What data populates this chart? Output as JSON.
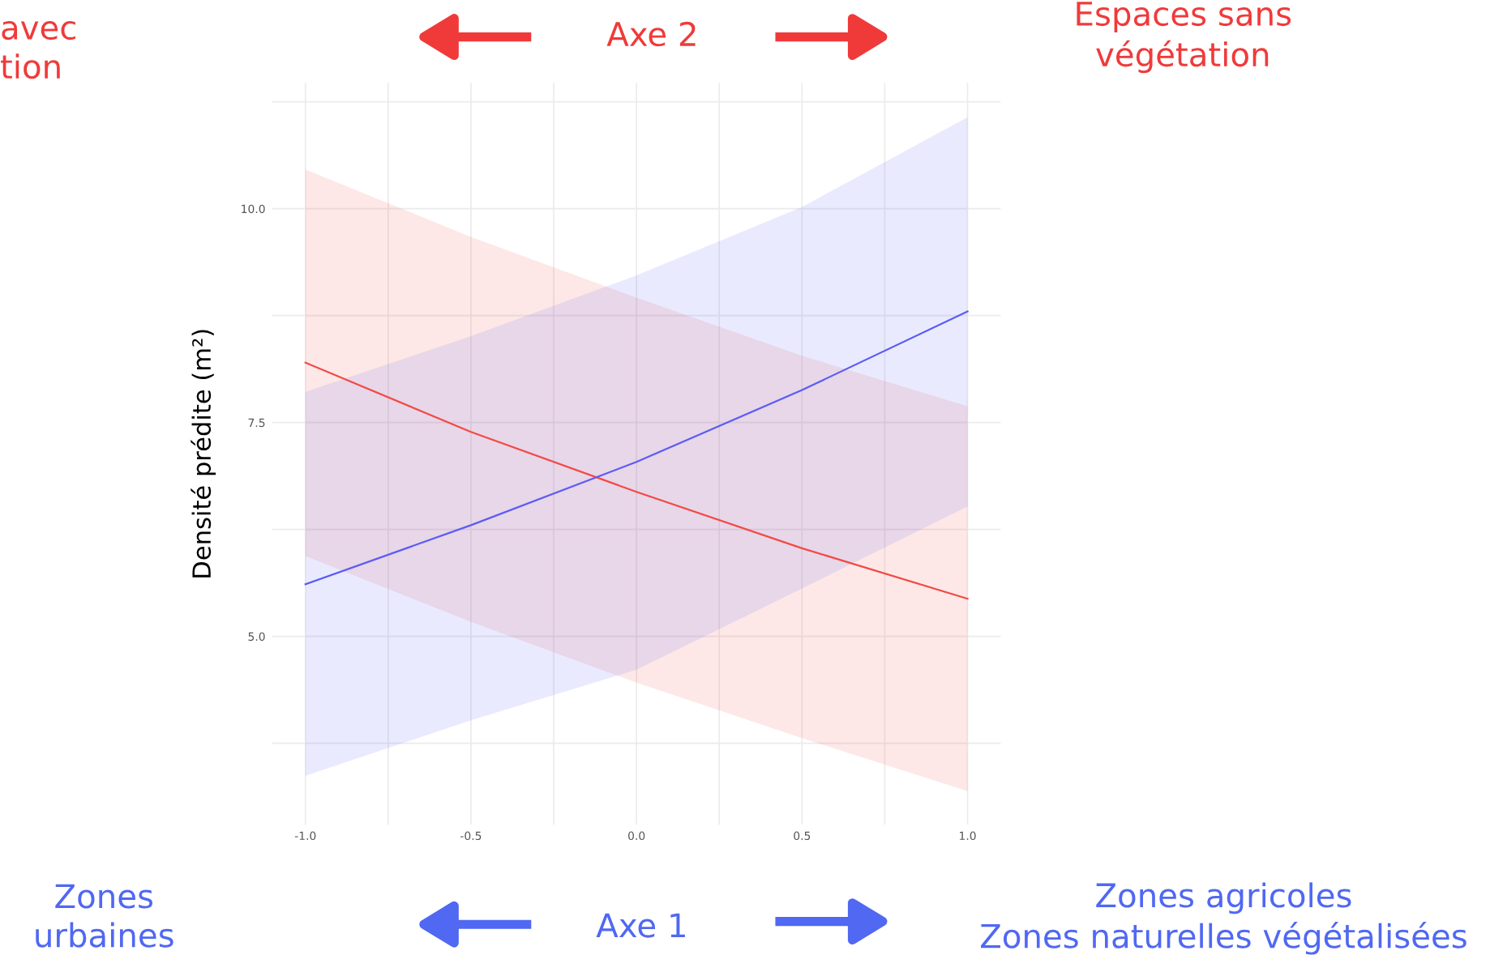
{
  "chart_data": {
    "type": "line",
    "ylabel": "Densité prédite (m²)",
    "x": [
      -1.0,
      -0.5,
      0.0,
      0.5,
      1.0
    ],
    "series": [
      {
        "color": "#f24a45",
        "values": [
          8.2,
          7.39,
          6.69,
          6.03,
          5.44
        ],
        "lower": [
          5.94,
          5.17,
          4.46,
          3.81,
          3.19
        ],
        "upper": [
          10.46,
          9.67,
          8.96,
          8.28,
          7.69
        ]
      },
      {
        "color": "#5a5cf5",
        "values": [
          5.61,
          6.3,
          7.04,
          7.88,
          8.8
        ],
        "lower": [
          3.37,
          4.02,
          4.61,
          5.56,
          6.52
        ],
        "upper": [
          7.86,
          8.51,
          9.22,
          10.02,
          11.07
        ]
      }
    ],
    "xlim": [
      -1.1,
      1.1
    ],
    "ylim": [
      2.8,
      11.47
    ],
    "xticks": [
      {
        "value": -1.0,
        "label": "-1.0"
      },
      {
        "value": -0.75,
        "label": null
      },
      {
        "value": -0.5,
        "label": "-0.5"
      },
      {
        "value": -0.25,
        "label": null
      },
      {
        "value": 0.0,
        "label": "0.0"
      },
      {
        "value": 0.25,
        "label": null
      },
      {
        "value": 0.5,
        "label": "0.5"
      },
      {
        "value": 0.75,
        "label": null
      },
      {
        "value": 1.0,
        "label": "1.0"
      }
    ],
    "yticks": [
      {
        "value": 3.75,
        "label": null
      },
      {
        "value": 5.0,
        "label": "5.0"
      },
      {
        "value": 6.25,
        "label": null
      },
      {
        "value": 7.5,
        "label": "7.5"
      },
      {
        "value": 8.75,
        "label": null
      },
      {
        "value": 10.0,
        "label": "10.0"
      },
      {
        "value": 11.25,
        "label": null
      }
    ],
    "grid": true,
    "marker": "none",
    "line_style": "solid",
    "legend": false,
    "annotations": [
      "avec\ntion",
      "Axe 2",
      "Espaces sans\nvégétation",
      "Zones\nurbaines",
      "Axe 1",
      "Zones agricoles\nZones naturelles végétalisées"
    ]
  }
}
